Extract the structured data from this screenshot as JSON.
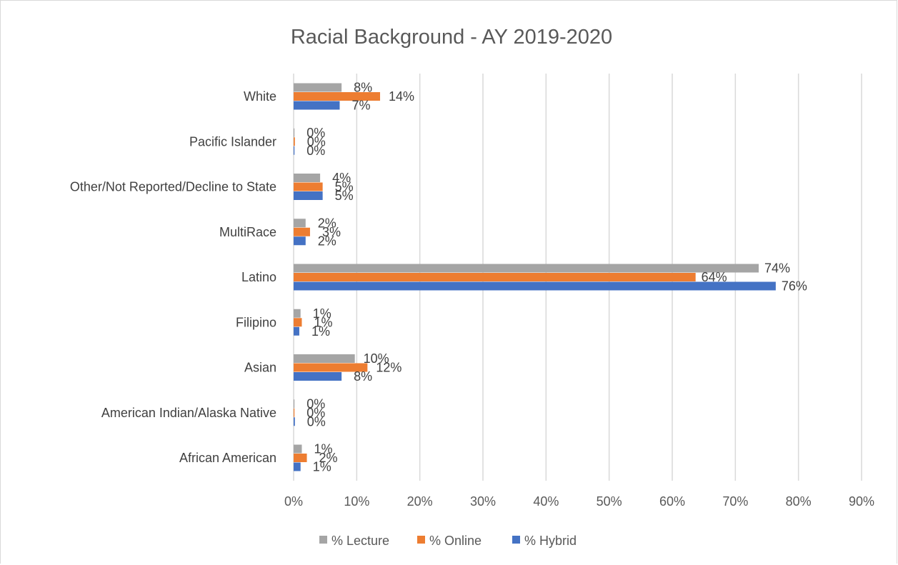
{
  "chart_data": {
    "type": "bar",
    "orientation": "horizontal",
    "title": "Racial Background - AY 2019-2020",
    "categories": [
      "White",
      "Pacific Islander",
      "Other/Not Reported/Decline to State",
      "MultiRace",
      "Latino",
      "Filipino",
      "Asian",
      "American Indian/Alaska Native",
      "African American"
    ],
    "series": [
      {
        "name": "% Lecture",
        "color": "#a5a5a5",
        "values": [
          7.6,
          0.1,
          4.2,
          1.9,
          73.7,
          1.1,
          9.7,
          0.1,
          1.3
        ],
        "labels": [
          "8%",
          "0%",
          "4%",
          "2%",
          "74%",
          "1%",
          "10%",
          "0%",
          "1%"
        ]
      },
      {
        "name": "% Online",
        "color": "#ed7d31",
        "values": [
          13.7,
          0.2,
          4.6,
          2.6,
          63.7,
          1.3,
          11.7,
          0.1,
          2.1
        ],
        "labels": [
          "14%",
          "0%",
          "5%",
          "3%",
          "64%",
          "1%",
          "12%",
          "0%",
          "2%"
        ]
      },
      {
        "name": "% Hybrid",
        "color": "#4472c4",
        "values": [
          7.3,
          0.1,
          4.6,
          1.9,
          76.4,
          0.9,
          7.6,
          0.2,
          1.1
        ],
        "labels": [
          "7%",
          "0%",
          "5%",
          "2%",
          "76%",
          "1%",
          "8%",
          "0%",
          "1%"
        ]
      }
    ],
    "xlim": [
      0,
      90
    ],
    "xticks": [
      0,
      10,
      20,
      30,
      40,
      50,
      60,
      70,
      80,
      90
    ],
    "xtick_labels": [
      "0%",
      "10%",
      "20%",
      "30%",
      "40%",
      "50%",
      "60%",
      "70%",
      "80%",
      "90%"
    ],
    "xlabel": "",
    "ylabel": "",
    "grid": "vertical",
    "legend": "bottom"
  }
}
